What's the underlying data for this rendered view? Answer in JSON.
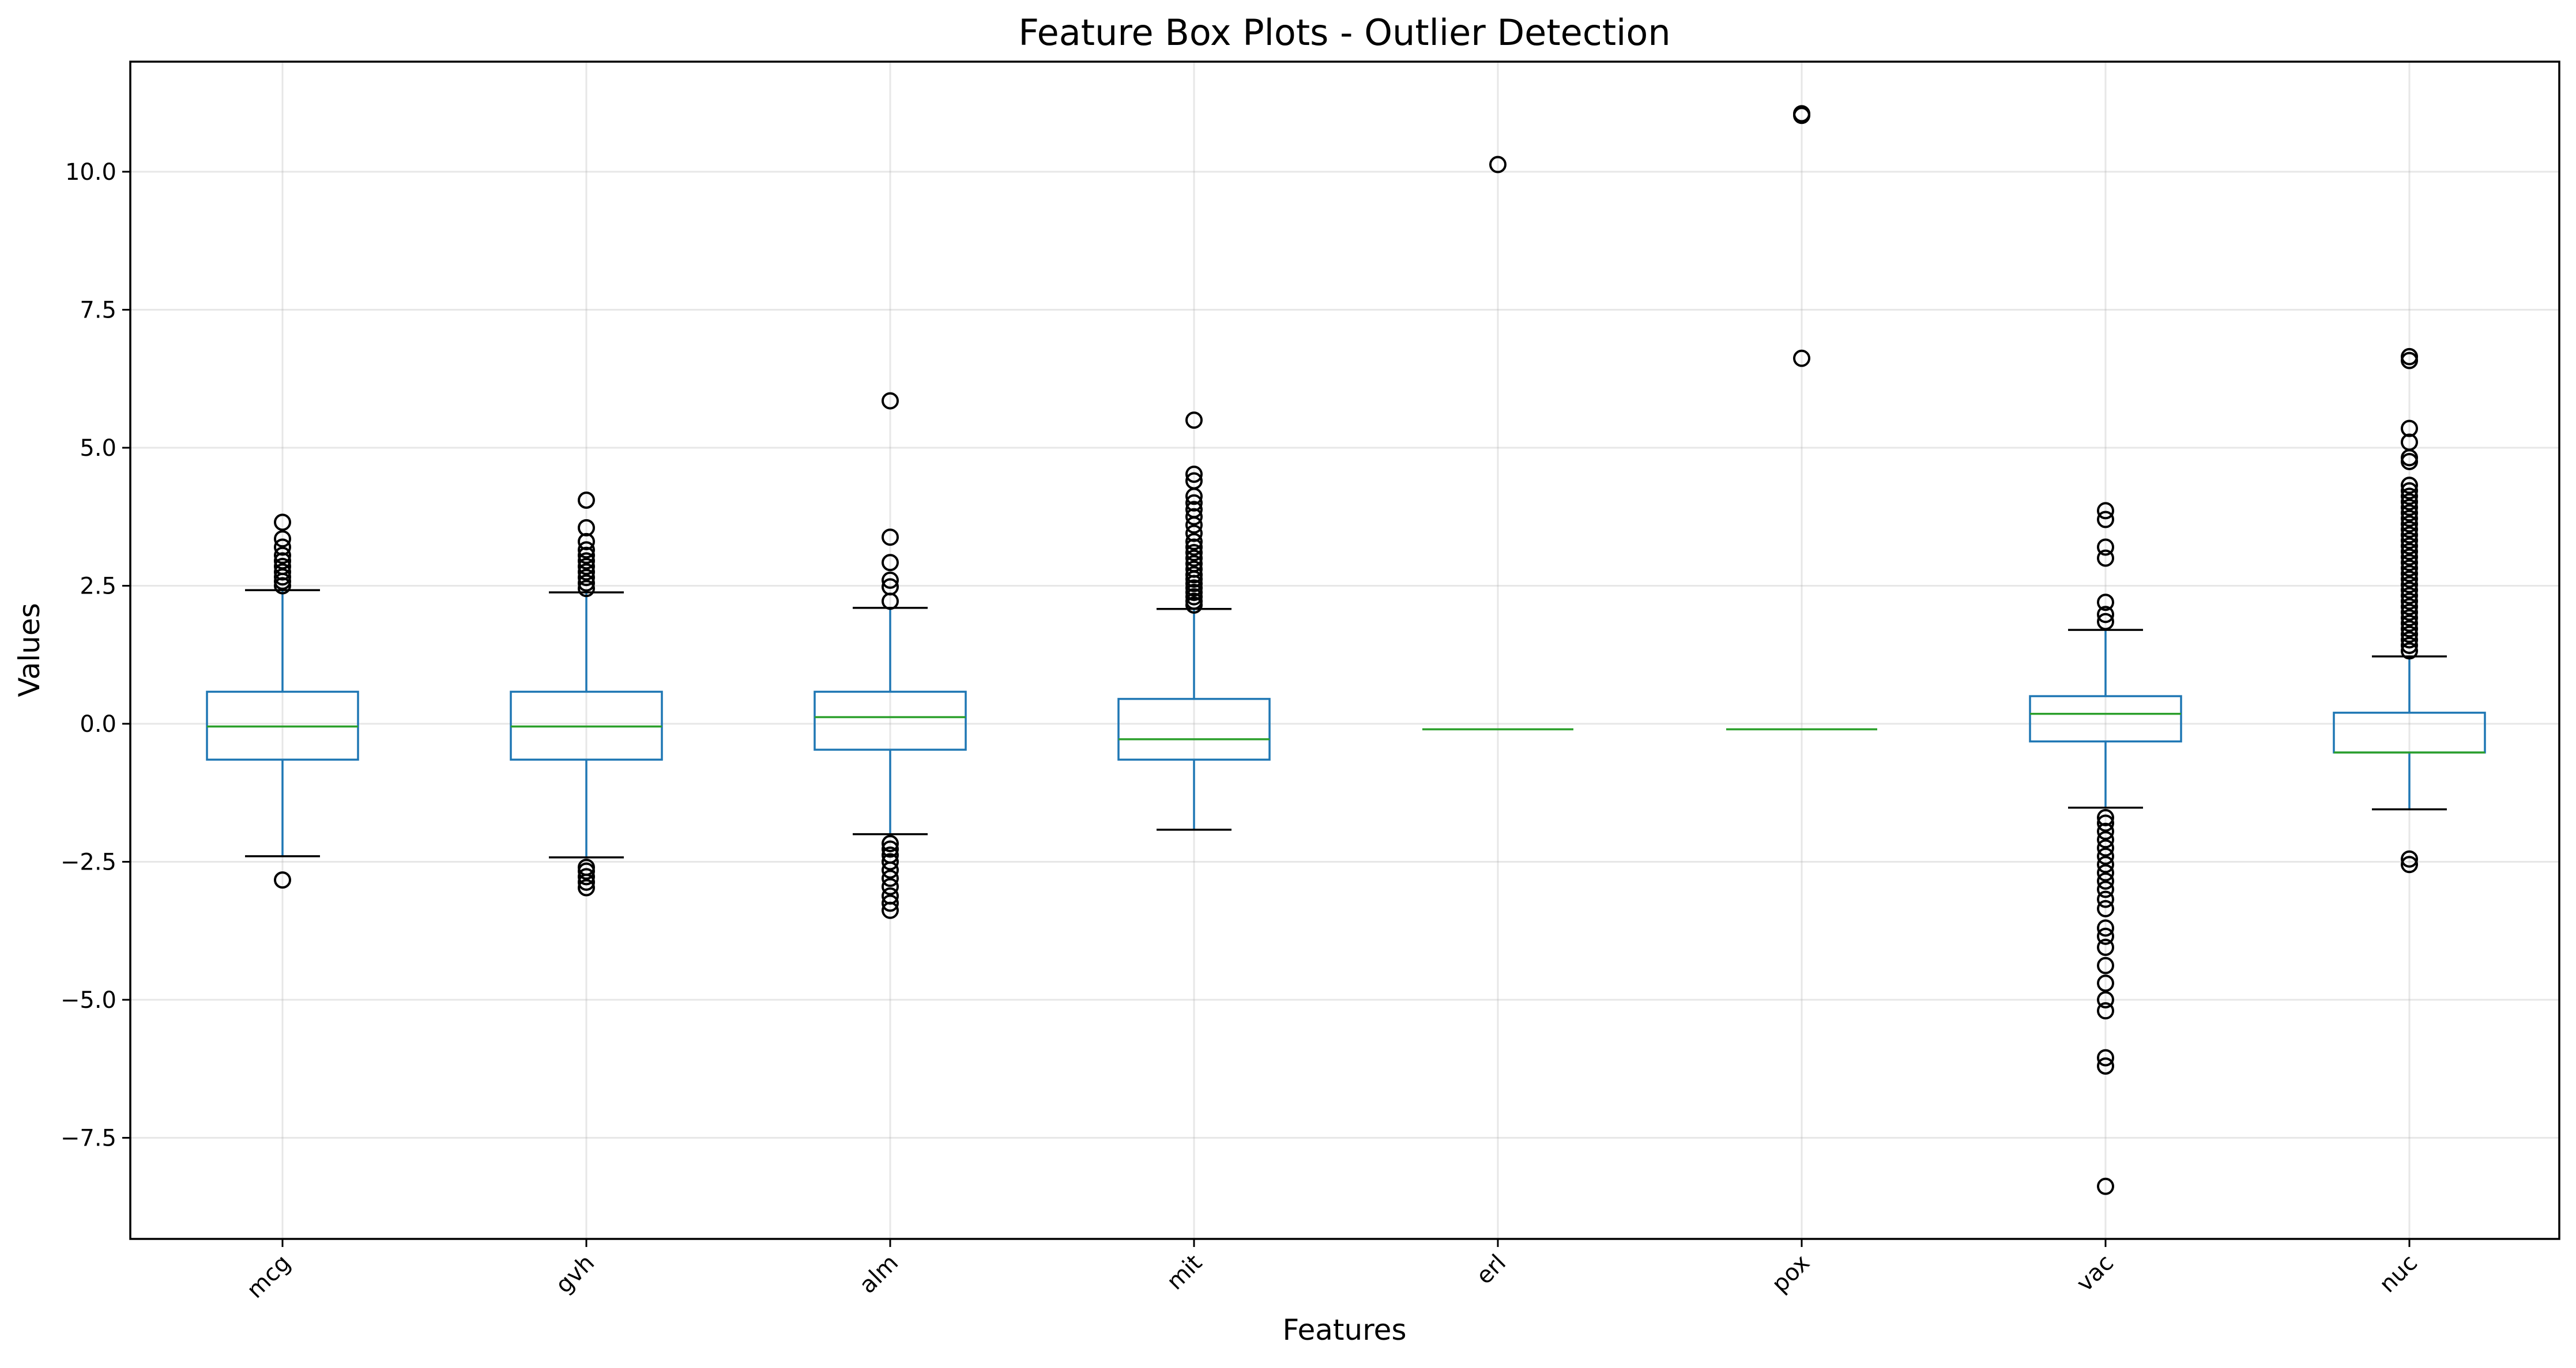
{
  "chart_data": {
    "type": "box",
    "title": "Feature Box Plots - Outlier Detection",
    "xlabel": "Features",
    "ylabel": "Values",
    "ylim": [
      -9.0,
      12.0
    ],
    "yticks": [
      -7.5,
      -5.0,
      -2.5,
      0.0,
      2.5,
      5.0,
      7.5,
      10.0
    ],
    "ytick_labels": [
      "−7.5",
      "−5.0",
      "−2.5",
      "0.0",
      "2.5",
      "5.0",
      "7.5",
      "10.0"
    ],
    "grid": true,
    "categories": [
      "mcg",
      "gvh",
      "alm",
      "mit",
      "erl",
      "pox",
      "vac",
      "nuc"
    ],
    "boxes": [
      {
        "name": "mcg",
        "whisker_low": -2.4,
        "q1": -0.65,
        "median": -0.05,
        "q3": 0.58,
        "whisker_high": 2.42,
        "fliers": [
          -2.83,
          2.5,
          2.58,
          2.66,
          2.75,
          2.85,
          2.95,
          3.05,
          3.2,
          3.35,
          3.65
        ]
      },
      {
        "name": "gvh",
        "whisker_low": -2.42,
        "q1": -0.65,
        "median": -0.05,
        "q3": 0.58,
        "whisker_high": 2.38,
        "fliers": [
          -2.97,
          -2.87,
          -2.77,
          -2.67,
          -2.6,
          2.45,
          2.55,
          2.65,
          2.75,
          2.85,
          2.95,
          3.05,
          3.15,
          3.3,
          3.55,
          4.05
        ]
      },
      {
        "name": "alm",
        "whisker_low": -2.0,
        "q1": -0.47,
        "median": 0.12,
        "q3": 0.58,
        "whisker_high": 2.1,
        "fliers": [
          -3.38,
          -3.25,
          -3.12,
          -2.95,
          -2.8,
          -2.65,
          -2.5,
          -2.38,
          -2.27,
          -2.17,
          2.22,
          2.48,
          2.6,
          2.92,
          3.38,
          5.85
        ]
      },
      {
        "name": "mit",
        "whisker_low": -1.92,
        "q1": -0.65,
        "median": -0.28,
        "q3": 0.45,
        "whisker_high": 2.08,
        "fliers": [
          2.15,
          2.22,
          2.3,
          2.38,
          2.46,
          2.54,
          2.62,
          2.7,
          2.8,
          2.9,
          3.0,
          3.1,
          3.2,
          3.3,
          3.45,
          3.6,
          3.75,
          3.88,
          4.0,
          4.12,
          4.4,
          4.52,
          5.5
        ]
      },
      {
        "name": "erl",
        "whisker_low": -0.1,
        "q1": -0.1,
        "median": -0.1,
        "q3": -0.1,
        "whisker_high": -0.1,
        "fliers": [
          10.13
        ]
      },
      {
        "name": "pox",
        "whisker_low": -0.1,
        "q1": -0.1,
        "median": -0.1,
        "q3": -0.1,
        "whisker_high": -0.1,
        "fliers": [
          6.62,
          11.02,
          11.05
        ]
      },
      {
        "name": "vac",
        "whisker_low": -1.52,
        "q1": -0.32,
        "median": 0.18,
        "q3": 0.5,
        "whisker_high": 1.7,
        "fliers": [
          -8.38,
          -6.2,
          -6.05,
          -5.2,
          -5.0,
          -4.7,
          -4.38,
          -4.05,
          -3.85,
          -3.7,
          -3.35,
          -3.18,
          -3.0,
          -2.85,
          -2.7,
          -2.55,
          -2.4,
          -2.25,
          -2.1,
          -1.95,
          -1.8,
          -1.7,
          1.85,
          1.98,
          2.2,
          3.0,
          3.2,
          3.7,
          3.86
        ]
      },
      {
        "name": "nuc",
        "whisker_low": -1.55,
        "q1": -0.52,
        "median": -0.52,
        "q3": 0.2,
        "whisker_high": 1.22,
        "fliers": [
          -2.55,
          -2.45,
          1.32,
          1.42,
          1.52,
          1.62,
          1.72,
          1.82,
          1.92,
          2.02,
          2.12,
          2.22,
          2.32,
          2.42,
          2.52,
          2.62,
          2.72,
          2.82,
          2.92,
          3.02,
          3.12,
          3.22,
          3.32,
          3.42,
          3.52,
          3.62,
          3.72,
          3.82,
          3.92,
          4.02,
          4.12,
          4.22,
          4.32,
          4.75,
          4.82,
          5.1,
          5.35,
          6.58,
          6.65
        ]
      }
    ]
  }
}
